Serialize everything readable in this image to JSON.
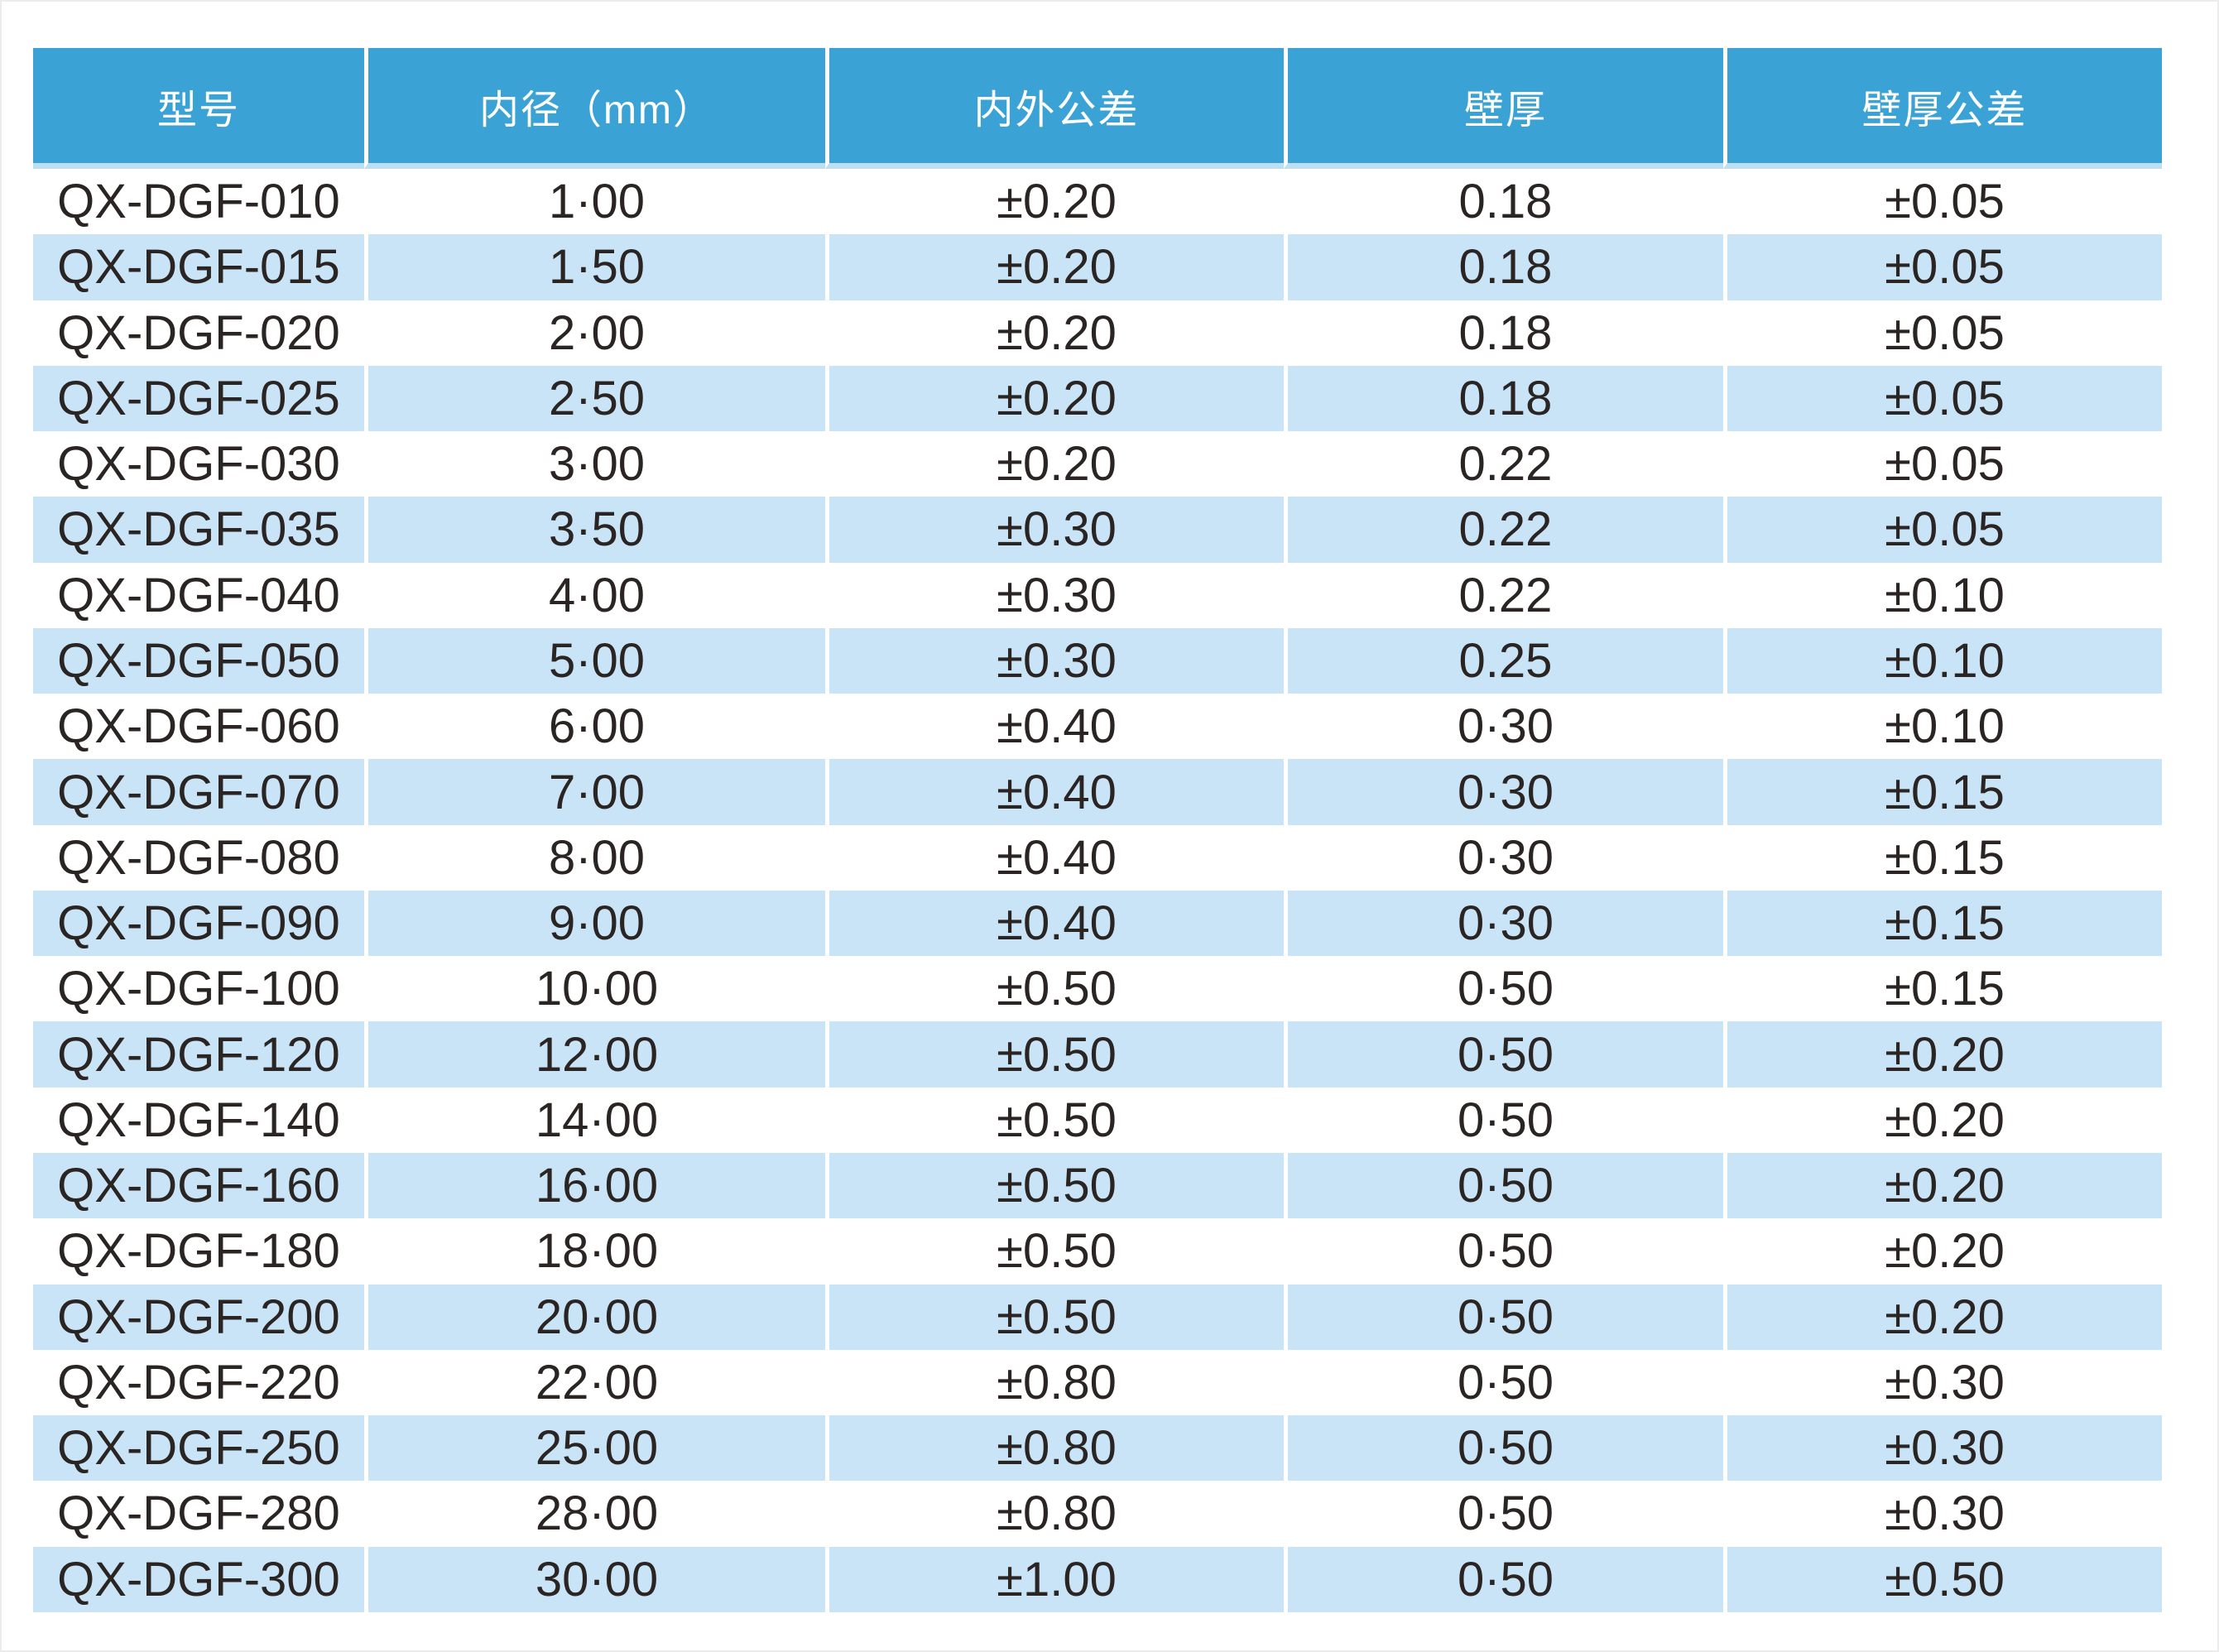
{
  "table": {
    "columns": [
      {
        "key": "model",
        "label": "型号"
      },
      {
        "key": "id_mm",
        "label": "内径（mm）"
      },
      {
        "key": "od_tol",
        "label": "内外公差"
      },
      {
        "key": "wall",
        "label": "壁厚"
      },
      {
        "key": "wall_tol",
        "label": "壁厚公差"
      }
    ],
    "rows": [
      {
        "model": "QX-DGF-010",
        "id_mm": "1·00",
        "od_tol": "±0.20",
        "wall": "0.18",
        "wall_tol": "±0.05"
      },
      {
        "model": "QX-DGF-015",
        "id_mm": "1·50",
        "od_tol": "±0.20",
        "wall": "0.18",
        "wall_tol": "±0.05"
      },
      {
        "model": "QX-DGF-020",
        "id_mm": "2·00",
        "od_tol": "±0.20",
        "wall": "0.18",
        "wall_tol": "±0.05"
      },
      {
        "model": "QX-DGF-025",
        "id_mm": "2·50",
        "od_tol": "±0.20",
        "wall": "0.18",
        "wall_tol": "±0.05"
      },
      {
        "model": "QX-DGF-030",
        "id_mm": "3·00",
        "od_tol": "±0.20",
        "wall": "0.22",
        "wall_tol": "±0.05"
      },
      {
        "model": "QX-DGF-035",
        "id_mm": "3·50",
        "od_tol": "±0.30",
        "wall": "0.22",
        "wall_tol": "±0.05"
      },
      {
        "model": "QX-DGF-040",
        "id_mm": "4·00",
        "od_tol": "±0.30",
        "wall": "0.22",
        "wall_tol": "±0.10"
      },
      {
        "model": "QX-DGF-050",
        "id_mm": "5·00",
        "od_tol": "±0.30",
        "wall": "0.25",
        "wall_tol": "±0.10"
      },
      {
        "model": "QX-DGF-060",
        "id_mm": "6·00",
        "od_tol": "±0.40",
        "wall": "0·30",
        "wall_tol": "±0.10"
      },
      {
        "model": "QX-DGF-070",
        "id_mm": "7·00",
        "od_tol": "±0.40",
        "wall": "0·30",
        "wall_tol": "±0.15"
      },
      {
        "model": "QX-DGF-080",
        "id_mm": "8·00",
        "od_tol": "±0.40",
        "wall": "0·30",
        "wall_tol": "±0.15"
      },
      {
        "model": "QX-DGF-090",
        "id_mm": "9·00",
        "od_tol": "±0.40",
        "wall": "0·30",
        "wall_tol": "±0.15"
      },
      {
        "model": "QX-DGF-100",
        "id_mm": "10·00",
        "od_tol": "±0.50",
        "wall": "0·50",
        "wall_tol": "±0.15"
      },
      {
        "model": "QX-DGF-120",
        "id_mm": "12·00",
        "od_tol": "±0.50",
        "wall": "0·50",
        "wall_tol": "±0.20"
      },
      {
        "model": "QX-DGF-140",
        "id_mm": "14·00",
        "od_tol": "±0.50",
        "wall": "0·50",
        "wall_tol": "±0.20"
      },
      {
        "model": "QX-DGF-160",
        "id_mm": "16·00",
        "od_tol": "±0.50",
        "wall": "0·50",
        "wall_tol": "±0.20"
      },
      {
        "model": "QX-DGF-180",
        "id_mm": "18·00",
        "od_tol": "±0.50",
        "wall": "0·50",
        "wall_tol": "±0.20"
      },
      {
        "model": "QX-DGF-200",
        "id_mm": "20·00",
        "od_tol": "±0.50",
        "wall": "0·50",
        "wall_tol": "±0.20"
      },
      {
        "model": "QX-DGF-220",
        "id_mm": "22·00",
        "od_tol": "±0.80",
        "wall": "0·50",
        "wall_tol": "±0.30"
      },
      {
        "model": "QX-DGF-250",
        "id_mm": "25·00",
        "od_tol": "±0.80",
        "wall": "0·50",
        "wall_tol": "±0.30"
      },
      {
        "model": "QX-DGF-280",
        "id_mm": "28·00",
        "od_tol": "±0.80",
        "wall": "0·50",
        "wall_tol": "±0.30"
      },
      {
        "model": "QX-DGF-300",
        "id_mm": "30·00",
        "od_tol": "±1.00",
        "wall": "0·50",
        "wall_tol": "±0.50"
      }
    ],
    "colors": {
      "header_bg": "#3AA2D4",
      "header_underline": "#BCDFF1",
      "header_text": "#FFFFFF",
      "row_alt_bg": "#C9E4F6",
      "text": "#2A2422"
    }
  }
}
